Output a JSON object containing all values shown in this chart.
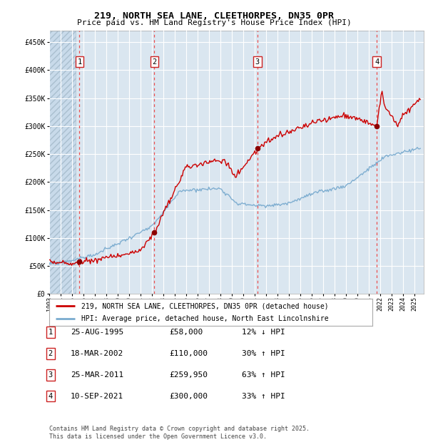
{
  "title": "219, NORTH SEA LANE, CLEETHORPES, DN35 0PR",
  "subtitle": "Price paid vs. HM Land Registry's House Price Index (HPI)",
  "legend_property": "219, NORTH SEA LANE, CLEETHORPES, DN35 0PR (detached house)",
  "legend_hpi": "HPI: Average price, detached house, North East Lincolnshire",
  "property_color": "#cc0000",
  "hpi_color": "#7aabcf",
  "sale_color": "#8b0000",
  "vline_color": "#ee3333",
  "background_color": "#dae6f0",
  "ylim": [
    0,
    470000
  ],
  "yticks": [
    0,
    50000,
    100000,
    150000,
    200000,
    250000,
    300000,
    350000,
    400000,
    450000
  ],
  "footer": "Contains HM Land Registry data © Crown copyright and database right 2025.\nThis data is licensed under the Open Government Licence v3.0.",
  "sales": [
    {
      "num": 1,
      "date": "25-AUG-1995",
      "price": 58000,
      "hpi_pct": "12% ↓ HPI",
      "year": 1995.65
    },
    {
      "num": 2,
      "date": "18-MAR-2002",
      "price": 110000,
      "hpi_pct": "30% ↑ HPI",
      "year": 2002.21
    },
    {
      "num": 3,
      "date": "25-MAR-2011",
      "price": 259950,
      "hpi_pct": "63% ↑ HPI",
      "year": 2011.23
    },
    {
      "num": 4,
      "date": "10-SEP-2021",
      "price": 300000,
      "hpi_pct": "33% ↑ HPI",
      "year": 2021.69
    }
  ]
}
